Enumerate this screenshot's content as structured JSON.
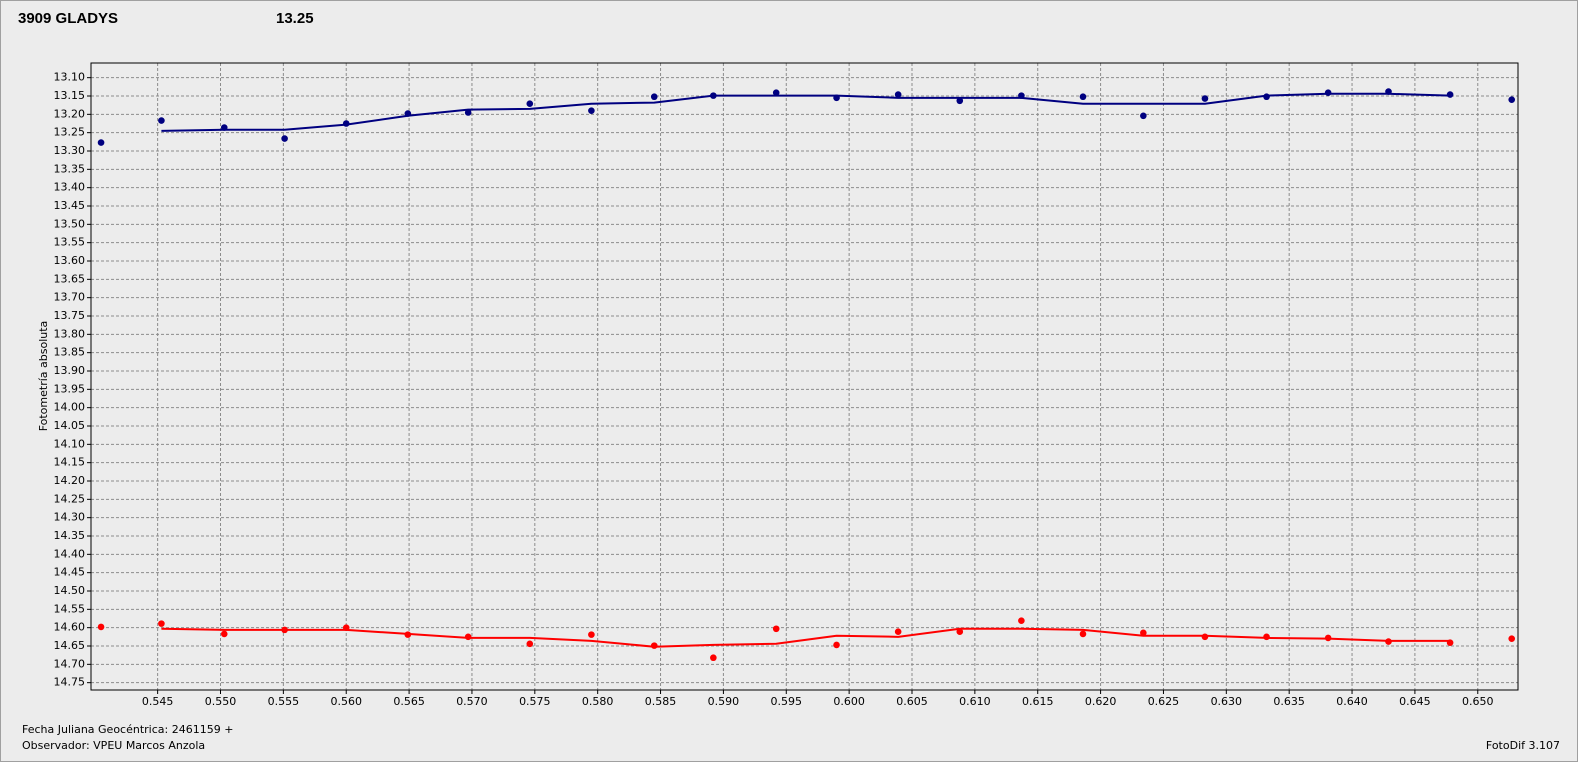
{
  "chart_data": {
    "type": "line",
    "title": "3909 GLADYS",
    "title_color": "#ff0000",
    "subtitle": "13.25",
    "subtitle_color": "#000080",
    "ylabel": "Fotometría absoluta",
    "xlabel": "Fecha Juliana Geocéntrica: 2461159 +",
    "annotations": [
      "Observador: VPEU Marcos Anzola",
      "FotoDif 3.107"
    ],
    "x": [
      0.5405,
      0.5453,
      0.5503,
      0.5551,
      0.56,
      0.5649,
      0.5697,
      0.5746,
      0.5795,
      0.5845,
      0.5892,
      0.5942,
      0.599,
      0.6039,
      0.6088,
      0.6137,
      0.6186,
      0.6234,
      0.6283,
      0.6332,
      0.6381,
      0.6429,
      0.6478,
      0.6527
    ],
    "series": [
      {
        "style": "points",
        "color": "#000080",
        "values": [
          13.277,
          13.217,
          13.236,
          13.266,
          13.225,
          13.198,
          13.195,
          13.171,
          13.19,
          13.152,
          13.149,
          13.141,
          13.155,
          13.146,
          13.163,
          13.149,
          13.152,
          13.204,
          13.157,
          13.152,
          13.141,
          13.138,
          13.146,
          13.16
        ]
      },
      {
        "style": "line",
        "color": "#000080",
        "values": [
          null,
          13.245,
          13.242,
          13.242,
          13.228,
          13.204,
          13.187,
          13.185,
          13.171,
          13.168,
          13.149,
          13.149,
          13.149,
          13.155,
          13.155,
          13.155,
          13.171,
          13.171,
          13.171,
          13.149,
          13.144,
          13.144,
          13.149,
          null
        ]
      },
      {
        "style": "points",
        "color": "#ff0000",
        "values": [
          14.598,
          14.589,
          14.617,
          14.606,
          14.6,
          14.619,
          14.625,
          14.644,
          14.619,
          14.649,
          14.682,
          14.603,
          14.647,
          14.611,
          14.611,
          14.581,
          14.617,
          14.614,
          14.625,
          14.625,
          14.628,
          14.638,
          14.641,
          14.63
        ]
      },
      {
        "style": "line",
        "color": "#ff0000",
        "values": [
          null,
          14.603,
          14.606,
          14.606,
          14.606,
          14.617,
          14.628,
          14.628,
          14.636,
          14.652,
          14.647,
          14.644,
          14.622,
          14.625,
          14.603,
          14.603,
          14.606,
          14.622,
          14.622,
          14.628,
          14.63,
          14.636,
          14.636,
          null
        ]
      }
    ],
    "xlim": [
      0.5397,
      0.6532
    ],
    "xticks": [
      0.545,
      {
        "value": 0.55,
        "label": "0.550"
      },
      0.555,
      {
        "value": 0.56,
        "label": "0.560"
      },
      0.565,
      {
        "value": 0.57,
        "label": "0.570"
      },
      0.575,
      {
        "value": 0.58,
        "label": "0.580"
      },
      0.585,
      {
        "value": 0.59,
        "label": "0.590"
      },
      0.595,
      {
        "value": 0.6,
        "label": "0.600"
      },
      0.605,
      {
        "value": 0.61,
        "label": "0.610"
      },
      0.615,
      {
        "value": 0.62,
        "label": "0.620"
      },
      0.625,
      {
        "value": 0.63,
        "label": "0.630"
      },
      0.635,
      {
        "value": 0.64,
        "label": "0.640"
      },
      0.645,
      {
        "value": 0.65,
        "label": "0.650"
      }
    ],
    "ylim": [
      13.06,
      14.77
    ],
    "y_inverted": true,
    "yticks": [
      {
        "value": 13.1,
        "label": "13.10"
      },
      13.15,
      {
        "value": 13.2,
        "label": "13.20"
      },
      13.25,
      {
        "value": 13.3,
        "label": "13.30"
      },
      13.35,
      {
        "value": 13.4,
        "label": "13.40"
      },
      13.45,
      {
        "value": 13.5,
        "label": "13.50"
      },
      13.55,
      {
        "value": 13.6,
        "label": "13.60"
      },
      13.65,
      {
        "value": 13.7,
        "label": "13.70"
      },
      13.75,
      {
        "value": 13.8,
        "label": "13.80"
      },
      13.85,
      {
        "value": 13.9,
        "label": "13.90"
      },
      13.95,
      {
        "value": 14,
        "label": "14.00"
      },
      14.05,
      {
        "value": 14.1,
        "label": "14.10"
      },
      14.15,
      {
        "value": 14.2,
        "label": "14.20"
      },
      14.25,
      {
        "value": 14.3,
        "label": "14.30"
      },
      14.35,
      {
        "value": 14.4,
        "label": "14.40"
      },
      14.45,
      {
        "value": 14.5,
        "label": "14.50"
      },
      14.55,
      {
        "value": 14.6,
        "label": "14.60"
      },
      14.65,
      {
        "value": 14.7,
        "label": "14.70"
      },
      14.75
    ],
    "grid": true
  }
}
